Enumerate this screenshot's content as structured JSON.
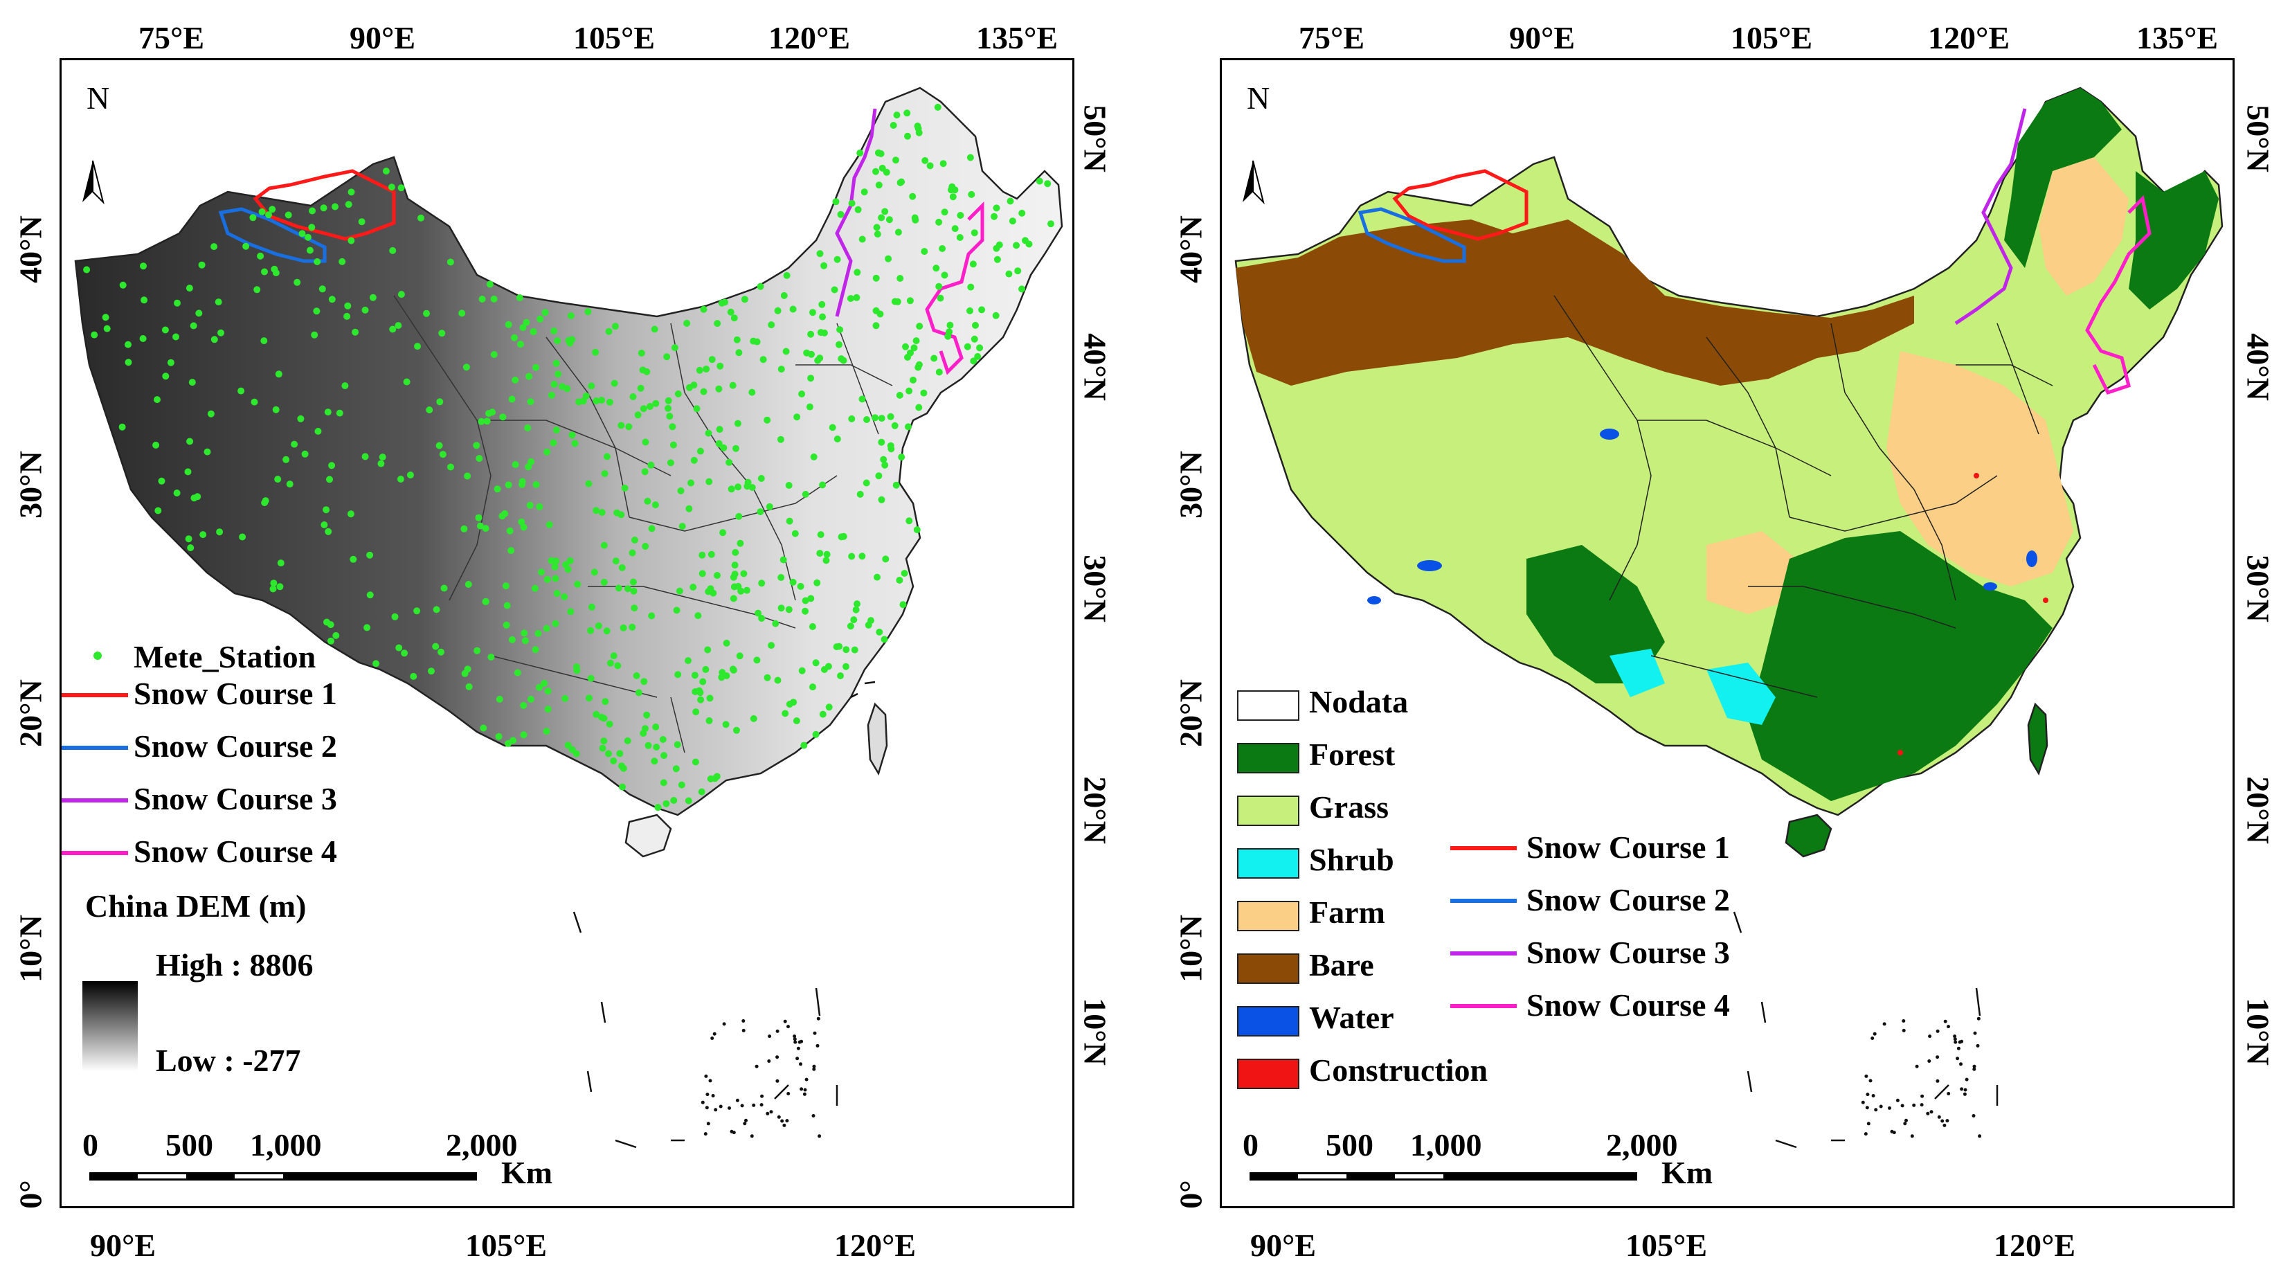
{
  "left_map": {
    "top_lon_labels": [
      "75°E",
      "90°E",
      "105°E",
      "120°E",
      "135°E"
    ],
    "bottom_lon_labels": [
      "90°E",
      "105°E",
      "120°E"
    ],
    "left_lat_labels": [
      "40°N",
      "30°N",
      "20°N",
      "10°N",
      "0°"
    ],
    "right_lat_labels": [
      "50°N",
      "40°N",
      "30°N",
      "20°N",
      "10°N"
    ],
    "north_label": "N",
    "legend": {
      "station": "Mete_Station",
      "courses": [
        "Snow Course 1",
        "Snow Course 2",
        "Snow Course 3",
        "Snow Course 4"
      ],
      "dem_title": "China DEM (m)",
      "high": "High : 8806",
      "low": "Low : -277"
    },
    "scalebar": {
      "ticks": [
        "0",
        "500",
        "1,000",
        "2,000"
      ],
      "unit": "Km"
    }
  },
  "right_map": {
    "top_lon_labels": [
      "75°E",
      "90°E",
      "105°E",
      "120°E",
      "135°E"
    ],
    "bottom_lon_labels": [
      "90°E",
      "105°E",
      "120°E"
    ],
    "left_lat_labels": [
      "40°N",
      "30°N",
      "20°N",
      "10°N",
      "0°"
    ],
    "right_lat_labels": [
      "50°N",
      "40°N",
      "30°N",
      "20°N",
      "10°N"
    ],
    "north_label": "N",
    "landcover_legend": [
      "Nodata",
      "Forest",
      "Grass",
      "Shrub",
      "Farm",
      "Bare",
      "Water",
      "Construction"
    ],
    "course_legend": [
      "Snow Course 1",
      "Snow Course 2",
      "Snow Course 3",
      "Snow Course 4"
    ],
    "scalebar": {
      "ticks": [
        "0",
        "500",
        "1,000",
        "2,000"
      ],
      "unit": "Km"
    }
  },
  "colors": {
    "station": "#2ee82e",
    "course1": "#ff1a1a",
    "course2": "#1a6fe0",
    "course3": "#c026e8",
    "course4": "#ff1fc8",
    "nodata": "#ffffff",
    "forest": "#0b7a12",
    "grass": "#c6ef7b",
    "shrub": "#12f0f0",
    "farm": "#fbcf86",
    "bare": "#8b4a06",
    "water": "#0a52e6",
    "construction": "#f01414"
  },
  "icons": {
    "north_arrow": "north-arrow-icon"
  }
}
